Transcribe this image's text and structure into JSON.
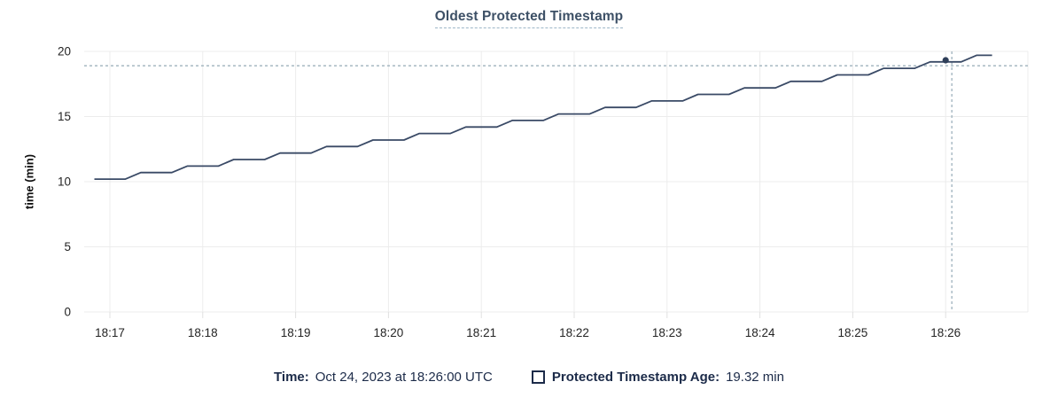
{
  "chart_data": {
    "type": "line",
    "title": "Oldest Protected Timestamp",
    "xlabel": "",
    "ylabel": "time (min)",
    "ylim": [
      0,
      20
    ],
    "yticks": [
      0,
      5,
      10,
      15,
      20
    ],
    "xticks": [
      "18:17",
      "18:18",
      "18:19",
      "18:20",
      "18:21",
      "18:22",
      "18:23",
      "18:24",
      "18:25",
      "18:26"
    ],
    "grid": "on",
    "legend_position": "bottom",
    "series": [
      {
        "name": "Protected Timestamp Age",
        "unit": "min",
        "points": [
          [
            "18:16:50",
            10.2
          ],
          [
            "18:17:10",
            10.2
          ],
          [
            "18:17:20",
            10.7
          ],
          [
            "18:17:40",
            10.7
          ],
          [
            "18:17:50",
            11.2
          ],
          [
            "18:18:10",
            11.2
          ],
          [
            "18:18:20",
            11.7
          ],
          [
            "18:18:40",
            11.7
          ],
          [
            "18:18:50",
            12.2
          ],
          [
            "18:19:10",
            12.2
          ],
          [
            "18:19:20",
            12.7
          ],
          [
            "18:19:40",
            12.7
          ],
          [
            "18:19:50",
            13.2
          ],
          [
            "18:20:10",
            13.2
          ],
          [
            "18:20:20",
            13.7
          ],
          [
            "18:20:40",
            13.7
          ],
          [
            "18:20:50",
            14.2
          ],
          [
            "18:21:10",
            14.2
          ],
          [
            "18:21:20",
            14.7
          ],
          [
            "18:21:40",
            14.7
          ],
          [
            "18:21:50",
            15.2
          ],
          [
            "18:22:10",
            15.2
          ],
          [
            "18:22:20",
            15.7
          ],
          [
            "18:22:40",
            15.7
          ],
          [
            "18:22:50",
            16.2
          ],
          [
            "18:23:10",
            16.2
          ],
          [
            "18:23:20",
            16.7
          ],
          [
            "18:23:40",
            16.7
          ],
          [
            "18:23:50",
            17.2
          ],
          [
            "18:24:10",
            17.2
          ],
          [
            "18:24:20",
            17.7
          ],
          [
            "18:24:40",
            17.7
          ],
          [
            "18:24:50",
            18.2
          ],
          [
            "18:25:10",
            18.2
          ],
          [
            "18:25:20",
            18.7
          ],
          [
            "18:25:40",
            18.7
          ],
          [
            "18:25:50",
            19.2
          ],
          [
            "18:26:10",
            19.2
          ],
          [
            "18:26:20",
            19.7
          ],
          [
            "18:26:30",
            19.7
          ]
        ]
      }
    ],
    "hover_crosshair": {
      "time": "18:26:04",
      "value": 18.9
    },
    "hover_point": {
      "time": "18:26:00",
      "value": 19.32
    },
    "colors": {
      "line": "#3a4a66",
      "marker": "#2e3e58",
      "grid": "#ececec",
      "tick": "#e0e0e0",
      "crosshair": "#9fb2bd",
      "axis_text": "#242424",
      "title_text": "#3d5066",
      "legend_text": "#1c2b49"
    }
  },
  "legend": {
    "time_label": "Time:",
    "time_value": "Oct 24, 2023 at 18:26:00 UTC",
    "series_label": "Protected Timestamp Age:",
    "series_value": "19.32 min"
  }
}
